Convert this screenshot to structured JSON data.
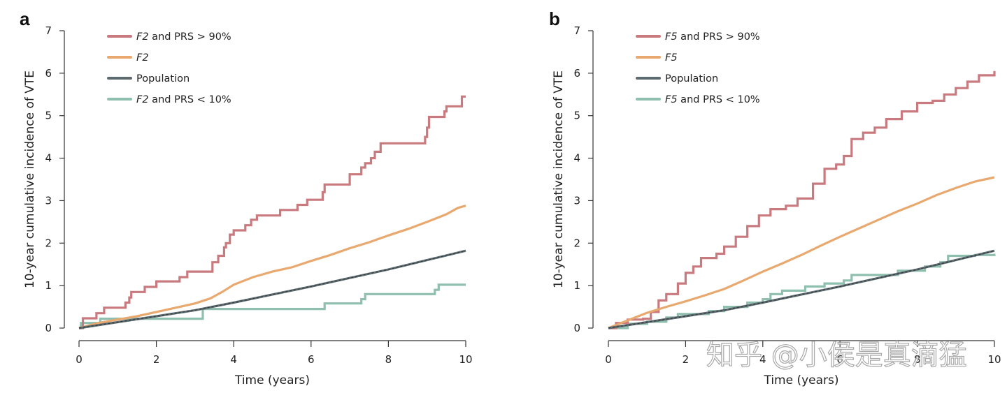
{
  "watermark": "知乎 @小侯是真滴猛",
  "chart_data": [
    {
      "panel": "a",
      "type": "line",
      "step": true,
      "title": "",
      "xlabel": "Time (years)",
      "ylabel": "10-year cumulative incidence of VTE",
      "xlim": [
        0,
        10
      ],
      "ylim": [
        0,
        7
      ],
      "xticks": [
        0,
        2,
        4,
        6,
        8,
        10
      ],
      "yticks": [
        0,
        1,
        2,
        3,
        4,
        5,
        6,
        7
      ],
      "grid": false,
      "legend_position": "top-left",
      "series": [
        {
          "name": "F2 and PRS > 90%",
          "name_italic": "F2",
          "name_rest": " and PRS > 90%",
          "color": "#c97a7e",
          "points": [
            [
              0,
              0
            ],
            [
              0.1,
              0.23
            ],
            [
              0.45,
              0.35
            ],
            [
              0.65,
              0.48
            ],
            [
              1.2,
              0.6
            ],
            [
              1.3,
              0.72
            ],
            [
              1.35,
              0.85
            ],
            [
              1.7,
              0.97
            ],
            [
              2.0,
              1.1
            ],
            [
              2.6,
              1.2
            ],
            [
              2.8,
              1.33
            ],
            [
              3.45,
              1.55
            ],
            [
              3.6,
              1.7
            ],
            [
              3.75,
              1.9
            ],
            [
              3.8,
              2.0
            ],
            [
              3.9,
              2.2
            ],
            [
              4.0,
              2.3
            ],
            [
              4.3,
              2.42
            ],
            [
              4.45,
              2.55
            ],
            [
              4.6,
              2.65
            ],
            [
              5.2,
              2.78
            ],
            [
              5.65,
              2.9
            ],
            [
              5.9,
              3.02
            ],
            [
              6.3,
              3.2
            ],
            [
              6.35,
              3.38
            ],
            [
              7.0,
              3.62
            ],
            [
              7.3,
              3.78
            ],
            [
              7.4,
              3.88
            ],
            [
              7.55,
              4.0
            ],
            [
              7.65,
              4.15
            ],
            [
              7.8,
              4.35
            ],
            [
              8.95,
              4.5
            ],
            [
              9.0,
              4.72
            ],
            [
              9.05,
              4.97
            ],
            [
              9.45,
              5.1
            ],
            [
              9.5,
              5.22
            ],
            [
              9.9,
              5.45
            ],
            [
              10,
              5.45
            ]
          ]
        },
        {
          "name": "F2",
          "name_italic": "F2",
          "name_rest": "",
          "color": "#e8a86e",
          "points": [
            [
              0,
              0
            ],
            [
              0.5,
              0.12
            ],
            [
              1.0,
              0.2
            ],
            [
              1.5,
              0.28
            ],
            [
              2.0,
              0.38
            ],
            [
              2.5,
              0.48
            ],
            [
              3.0,
              0.58
            ],
            [
              3.4,
              0.7
            ],
            [
              3.7,
              0.85
            ],
            [
              4.0,
              1.02
            ],
            [
              4.5,
              1.2
            ],
            [
              5.0,
              1.33
            ],
            [
              5.5,
              1.43
            ],
            [
              6.0,
              1.58
            ],
            [
              6.5,
              1.72
            ],
            [
              7.0,
              1.88
            ],
            [
              7.5,
              2.02
            ],
            [
              8.0,
              2.18
            ],
            [
              8.5,
              2.33
            ],
            [
              9.0,
              2.5
            ],
            [
              9.5,
              2.68
            ],
            [
              9.8,
              2.83
            ],
            [
              10,
              2.88
            ]
          ]
        },
        {
          "name": "Population",
          "name_italic": "",
          "name_rest": "Population",
          "color": "#5d6a6e",
          "points": [
            [
              0,
              0
            ],
            [
              1,
              0.14
            ],
            [
              2,
              0.28
            ],
            [
              3,
              0.42
            ],
            [
              4,
              0.6
            ],
            [
              5,
              0.79
            ],
            [
              6,
              0.98
            ],
            [
              7,
              1.18
            ],
            [
              8,
              1.38
            ],
            [
              9,
              1.6
            ],
            [
              10,
              1.82
            ]
          ]
        },
        {
          "name": "F2 and PRS < 10%",
          "name_italic": "F2",
          "name_rest": " and PRS < 10%",
          "color": "#8fbfae",
          "points": [
            [
              0,
              0
            ],
            [
              0.05,
              0.12
            ],
            [
              0.55,
              0.22
            ],
            [
              3.2,
              0.45
            ],
            [
              6.35,
              0.58
            ],
            [
              7.3,
              0.68
            ],
            [
              7.4,
              0.8
            ],
            [
              9.2,
              0.9
            ],
            [
              9.3,
              1.02
            ],
            [
              10,
              1.02
            ]
          ]
        }
      ]
    },
    {
      "panel": "b",
      "type": "line",
      "step": true,
      "title": "",
      "xlabel": "Time (years)",
      "ylabel": "10-year cumulative incidence of VTE",
      "xlim": [
        0,
        10
      ],
      "ylim": [
        0,
        7
      ],
      "xticks": [
        0,
        2,
        4,
        6,
        8,
        10
      ],
      "yticks": [
        0,
        1,
        2,
        3,
        4,
        5,
        6,
        7
      ],
      "grid": false,
      "legend_position": "top-left",
      "series": [
        {
          "name": "F5 and PRS > 90%",
          "name_italic": "F5",
          "name_rest": " and PRS > 90%",
          "color": "#c97a7e",
          "points": [
            [
              0,
              0
            ],
            [
              0.2,
              0.12
            ],
            [
              0.5,
              0.2
            ],
            [
              0.9,
              0.22
            ],
            [
              1.1,
              0.38
            ],
            [
              1.3,
              0.65
            ],
            [
              1.5,
              0.8
            ],
            [
              1.8,
              1.05
            ],
            [
              2.0,
              1.3
            ],
            [
              2.2,
              1.45
            ],
            [
              2.4,
              1.65
            ],
            [
              2.8,
              1.75
            ],
            [
              3.0,
              1.92
            ],
            [
              3.3,
              2.15
            ],
            [
              3.6,
              2.4
            ],
            [
              3.9,
              2.65
            ],
            [
              4.2,
              2.8
            ],
            [
              4.6,
              2.88
            ],
            [
              4.9,
              3.05
            ],
            [
              5.3,
              3.4
            ],
            [
              5.6,
              3.75
            ],
            [
              5.9,
              3.85
            ],
            [
              6.1,
              4.05
            ],
            [
              6.3,
              4.45
            ],
            [
              6.6,
              4.6
            ],
            [
              6.9,
              4.72
            ],
            [
              7.2,
              4.92
            ],
            [
              7.6,
              5.1
            ],
            [
              8.0,
              5.3
            ],
            [
              8.4,
              5.35
            ],
            [
              8.7,
              5.5
            ],
            [
              9.0,
              5.65
            ],
            [
              9.3,
              5.8
            ],
            [
              9.6,
              5.95
            ],
            [
              10,
              6.05
            ]
          ]
        },
        {
          "name": "F5",
          "name_italic": "F5",
          "name_rest": "",
          "color": "#e8a86e",
          "points": [
            [
              0,
              0
            ],
            [
              0.5,
              0.18
            ],
            [
              1.0,
              0.36
            ],
            [
              1.5,
              0.5
            ],
            [
              2.0,
              0.63
            ],
            [
              2.5,
              0.77
            ],
            [
              3.0,
              0.92
            ],
            [
              3.5,
              1.12
            ],
            [
              4.0,
              1.33
            ],
            [
              4.5,
              1.52
            ],
            [
              5.0,
              1.72
            ],
            [
              5.5,
              1.94
            ],
            [
              6.0,
              2.15
            ],
            [
              6.5,
              2.35
            ],
            [
              7.0,
              2.55
            ],
            [
              7.5,
              2.75
            ],
            [
              8.0,
              2.93
            ],
            [
              8.5,
              3.13
            ],
            [
              9.0,
              3.3
            ],
            [
              9.5,
              3.45
            ],
            [
              10,
              3.55
            ]
          ]
        },
        {
          "name": "Population",
          "name_italic": "",
          "name_rest": "Population",
          "color": "#5d6a6e",
          "points": [
            [
              0,
              0
            ],
            [
              1,
              0.14
            ],
            [
              2,
              0.28
            ],
            [
              3,
              0.42
            ],
            [
              4,
              0.6
            ],
            [
              5,
              0.79
            ],
            [
              6,
              0.98
            ],
            [
              7,
              1.18
            ],
            [
              8,
              1.38
            ],
            [
              9,
              1.6
            ],
            [
              10,
              1.82
            ]
          ]
        },
        {
          "name": "F5 and PRS < 10%",
          "name_italic": "F5",
          "name_rest": " and PRS < 10%",
          "color": "#8fbfae",
          "points": [
            [
              0,
              0
            ],
            [
              0.5,
              0.1
            ],
            [
              1.0,
              0.15
            ],
            [
              1.5,
              0.25
            ],
            [
              1.8,
              0.33
            ],
            [
              2.6,
              0.4
            ],
            [
              3.0,
              0.5
            ],
            [
              3.6,
              0.6
            ],
            [
              4.0,
              0.68
            ],
            [
              4.2,
              0.8
            ],
            [
              4.5,
              0.88
            ],
            [
              5.1,
              0.98
            ],
            [
              5.6,
              1.05
            ],
            [
              6.1,
              1.12
            ],
            [
              6.3,
              1.25
            ],
            [
              7.5,
              1.35
            ],
            [
              8.2,
              1.45
            ],
            [
              8.6,
              1.55
            ],
            [
              8.8,
              1.7
            ],
            [
              9.5,
              1.72
            ],
            [
              10,
              1.75
            ]
          ]
        }
      ]
    }
  ]
}
